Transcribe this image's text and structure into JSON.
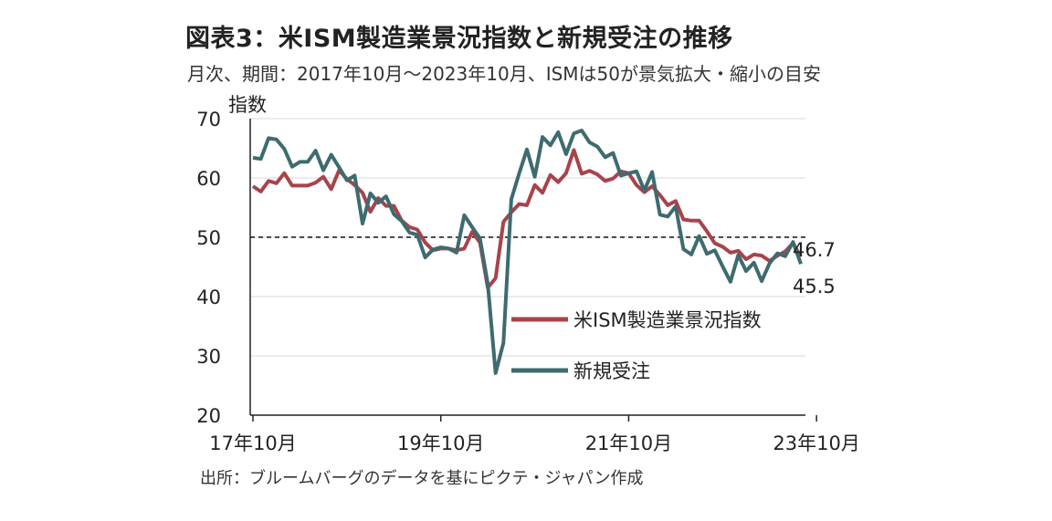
{
  "title": "図表3：米ISM製造業景況指数と新規受注の推移",
  "subtitle": "月次、期間：2017年10月～2023年10月、ISMは50が景気拡大・縮小の目安",
  "source": "出所：ブルームバーグのデータを基にピクテ・ジャパン作成",
  "chart_data": {
    "type": "line",
    "ylabel": "指数",
    "ylim": [
      20,
      70
    ],
    "yticks": [
      20,
      30,
      40,
      50,
      60,
      70
    ],
    "xtick_labels": [
      "17年10月",
      "19年10月",
      "21年10月",
      "23年10月"
    ],
    "x_start": "2017-10",
    "x_end": "2023-10",
    "reference_line": 50,
    "series": [
      {
        "name": "米ISM製造業景況指数",
        "color": "#a8434b",
        "values": [
          58.6,
          57.7,
          59.5,
          59.1,
          60.8,
          58.7,
          58.7,
          58.7,
          59.2,
          60.2,
          58.1,
          61.3,
          59.8,
          58.8,
          57.5,
          54.3,
          56.6,
          55.3,
          55.3,
          52.8,
          51.7,
          51.3,
          49.1,
          47.8,
          48.1,
          48.1,
          47.8,
          48.1,
          50.9,
          49.1,
          41.5,
          43.1,
          52.6,
          54.2,
          55.6,
          55.4,
          58.8,
          57.5,
          60.5,
          59.3,
          60.8,
          64.7,
          60.7,
          61.2,
          60.6,
          59.5,
          59.9,
          61.1,
          60.8,
          58.8,
          57.6,
          58.6,
          57.1,
          55.4,
          56.1,
          53.0,
          52.8,
          52.8,
          51.0,
          49.0,
          48.4,
          47.4,
          47.7,
          46.3,
          47.1,
          46.9,
          46.0,
          46.9,
          47.6,
          49.0,
          46.7
        ]
      },
      {
        "name": "新規受注",
        "color": "#3e6b6f",
        "values": [
          63.4,
          63.2,
          66.7,
          66.5,
          64.9,
          61.9,
          62.7,
          62.7,
          64.6,
          61.3,
          63.9,
          61.8,
          59.6,
          60.4,
          52.3,
          57.4,
          55.8,
          56.9,
          53.9,
          52.7,
          50.8,
          50.4,
          46.6,
          47.9,
          48.3,
          48.1,
          47.4,
          53.7,
          51.7,
          49.8,
          42.2,
          27.1,
          32.2,
          56.4,
          60.7,
          64.8,
          60.2,
          66.9,
          65.5,
          67.7,
          64.0,
          67.5,
          68.0,
          66.0,
          65.3,
          63.5,
          64.2,
          60.4,
          60.8,
          61.1,
          57.9,
          61.0,
          53.8,
          53.5,
          55.2,
          48.0,
          47.1,
          50.2,
          47.2,
          47.8,
          45.1,
          42.5,
          47.0,
          44.3,
          45.7,
          42.6,
          45.6,
          47.3,
          46.8,
          49.2,
          45.5
        ]
      }
    ],
    "end_labels": [
      "46.7",
      "45.5"
    ],
    "legend_placement": "center-right"
  }
}
